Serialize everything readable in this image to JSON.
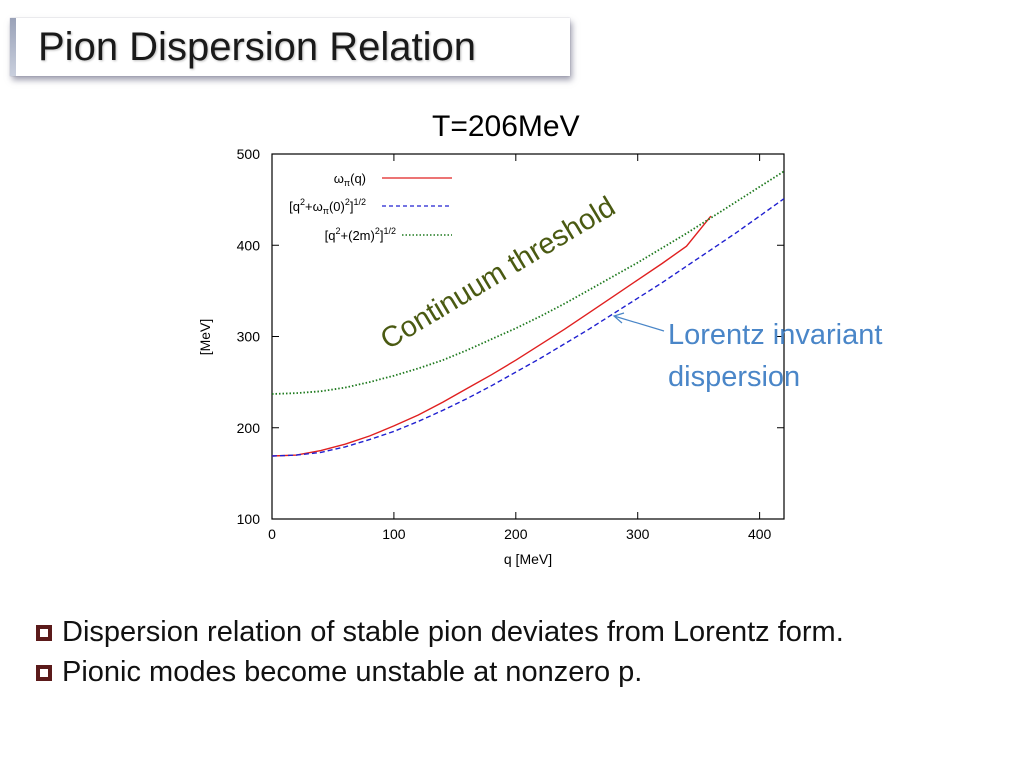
{
  "slide": {
    "title": "Pion Dispersion Relation",
    "subtitle": "T=206MeV",
    "bullets": [
      "Dispersion relation of stable pion deviates from Lorentz form.",
      "Pionic modes become unstable at nonzero p."
    ]
  },
  "chart_data": {
    "type": "line",
    "title": "T=206MeV",
    "xlabel": "q [MeV]",
    "ylabel": "[MeV]",
    "xlim": [
      0,
      420
    ],
    "ylim": [
      100,
      500
    ],
    "xticks": [
      0,
      100,
      200,
      300,
      400
    ],
    "yticks": [
      100,
      200,
      300,
      400,
      500
    ],
    "legend_position": "top-left",
    "series": [
      {
        "name": "ωπ(q)",
        "color": "#e02020",
        "style": "solid",
        "x": [
          0,
          20,
          40,
          60,
          80,
          100,
          120,
          140,
          160,
          180,
          200,
          220,
          240,
          260,
          280,
          300,
          320,
          340,
          360
        ],
        "y": [
          169,
          170,
          175,
          182,
          191,
          202,
          214,
          228,
          243,
          258,
          274,
          291,
          308,
          326,
          344,
          362,
          380,
          399,
          432
        ]
      },
      {
        "name": "[q²+ωπ(0)²]^(1/2)",
        "color": "#2020d0",
        "style": "dashed",
        "x": [
          0,
          20,
          40,
          60,
          80,
          100,
          120,
          140,
          160,
          180,
          200,
          220,
          240,
          260,
          280,
          300,
          320,
          340,
          360,
          380,
          400,
          420
        ],
        "y": [
          169,
          170,
          173,
          179,
          187,
          196,
          207,
          219,
          232,
          246,
          261,
          276,
          292,
          308,
          325,
          342,
          359,
          377,
          395,
          413,
          432,
          451
        ]
      },
      {
        "name": "[q²+(2m)²]^(1/2)",
        "color": "#1f7a1f",
        "style": "dotted",
        "x": [
          0,
          20,
          40,
          60,
          80,
          100,
          120,
          140,
          160,
          180,
          200,
          220,
          240,
          260,
          280,
          300,
          320,
          340,
          360,
          380,
          400,
          420
        ],
        "y": [
          237,
          238,
          240,
          244,
          250,
          257,
          265,
          274,
          285,
          297,
          309,
          322,
          336,
          351,
          366,
          381,
          397,
          413,
          430,
          447,
          464,
          481
        ]
      }
    ],
    "annotations": [
      {
        "text": "Continuum threshold",
        "color": "#4a5a12"
      },
      {
        "text": "Lorentz invariant",
        "text2": "dispersion",
        "color": "#4a86c8"
      }
    ],
    "legend_labels": {
      "s1": {
        "main": "ω",
        "sub": "π",
        "rest": "(q)"
      },
      "s2": {
        "pre": "[q",
        "sup1": "2",
        "mid": "+ω",
        "sub": "π",
        "mid2": "(0)",
        "sup2": "2",
        "close": "]",
        "sup3": "1/2"
      },
      "s3": {
        "pre": "[q",
        "sup1": "2",
        "mid": "+(2m)",
        "sup2": "2",
        "close": "]",
        "sup3": "1/2"
      }
    }
  }
}
